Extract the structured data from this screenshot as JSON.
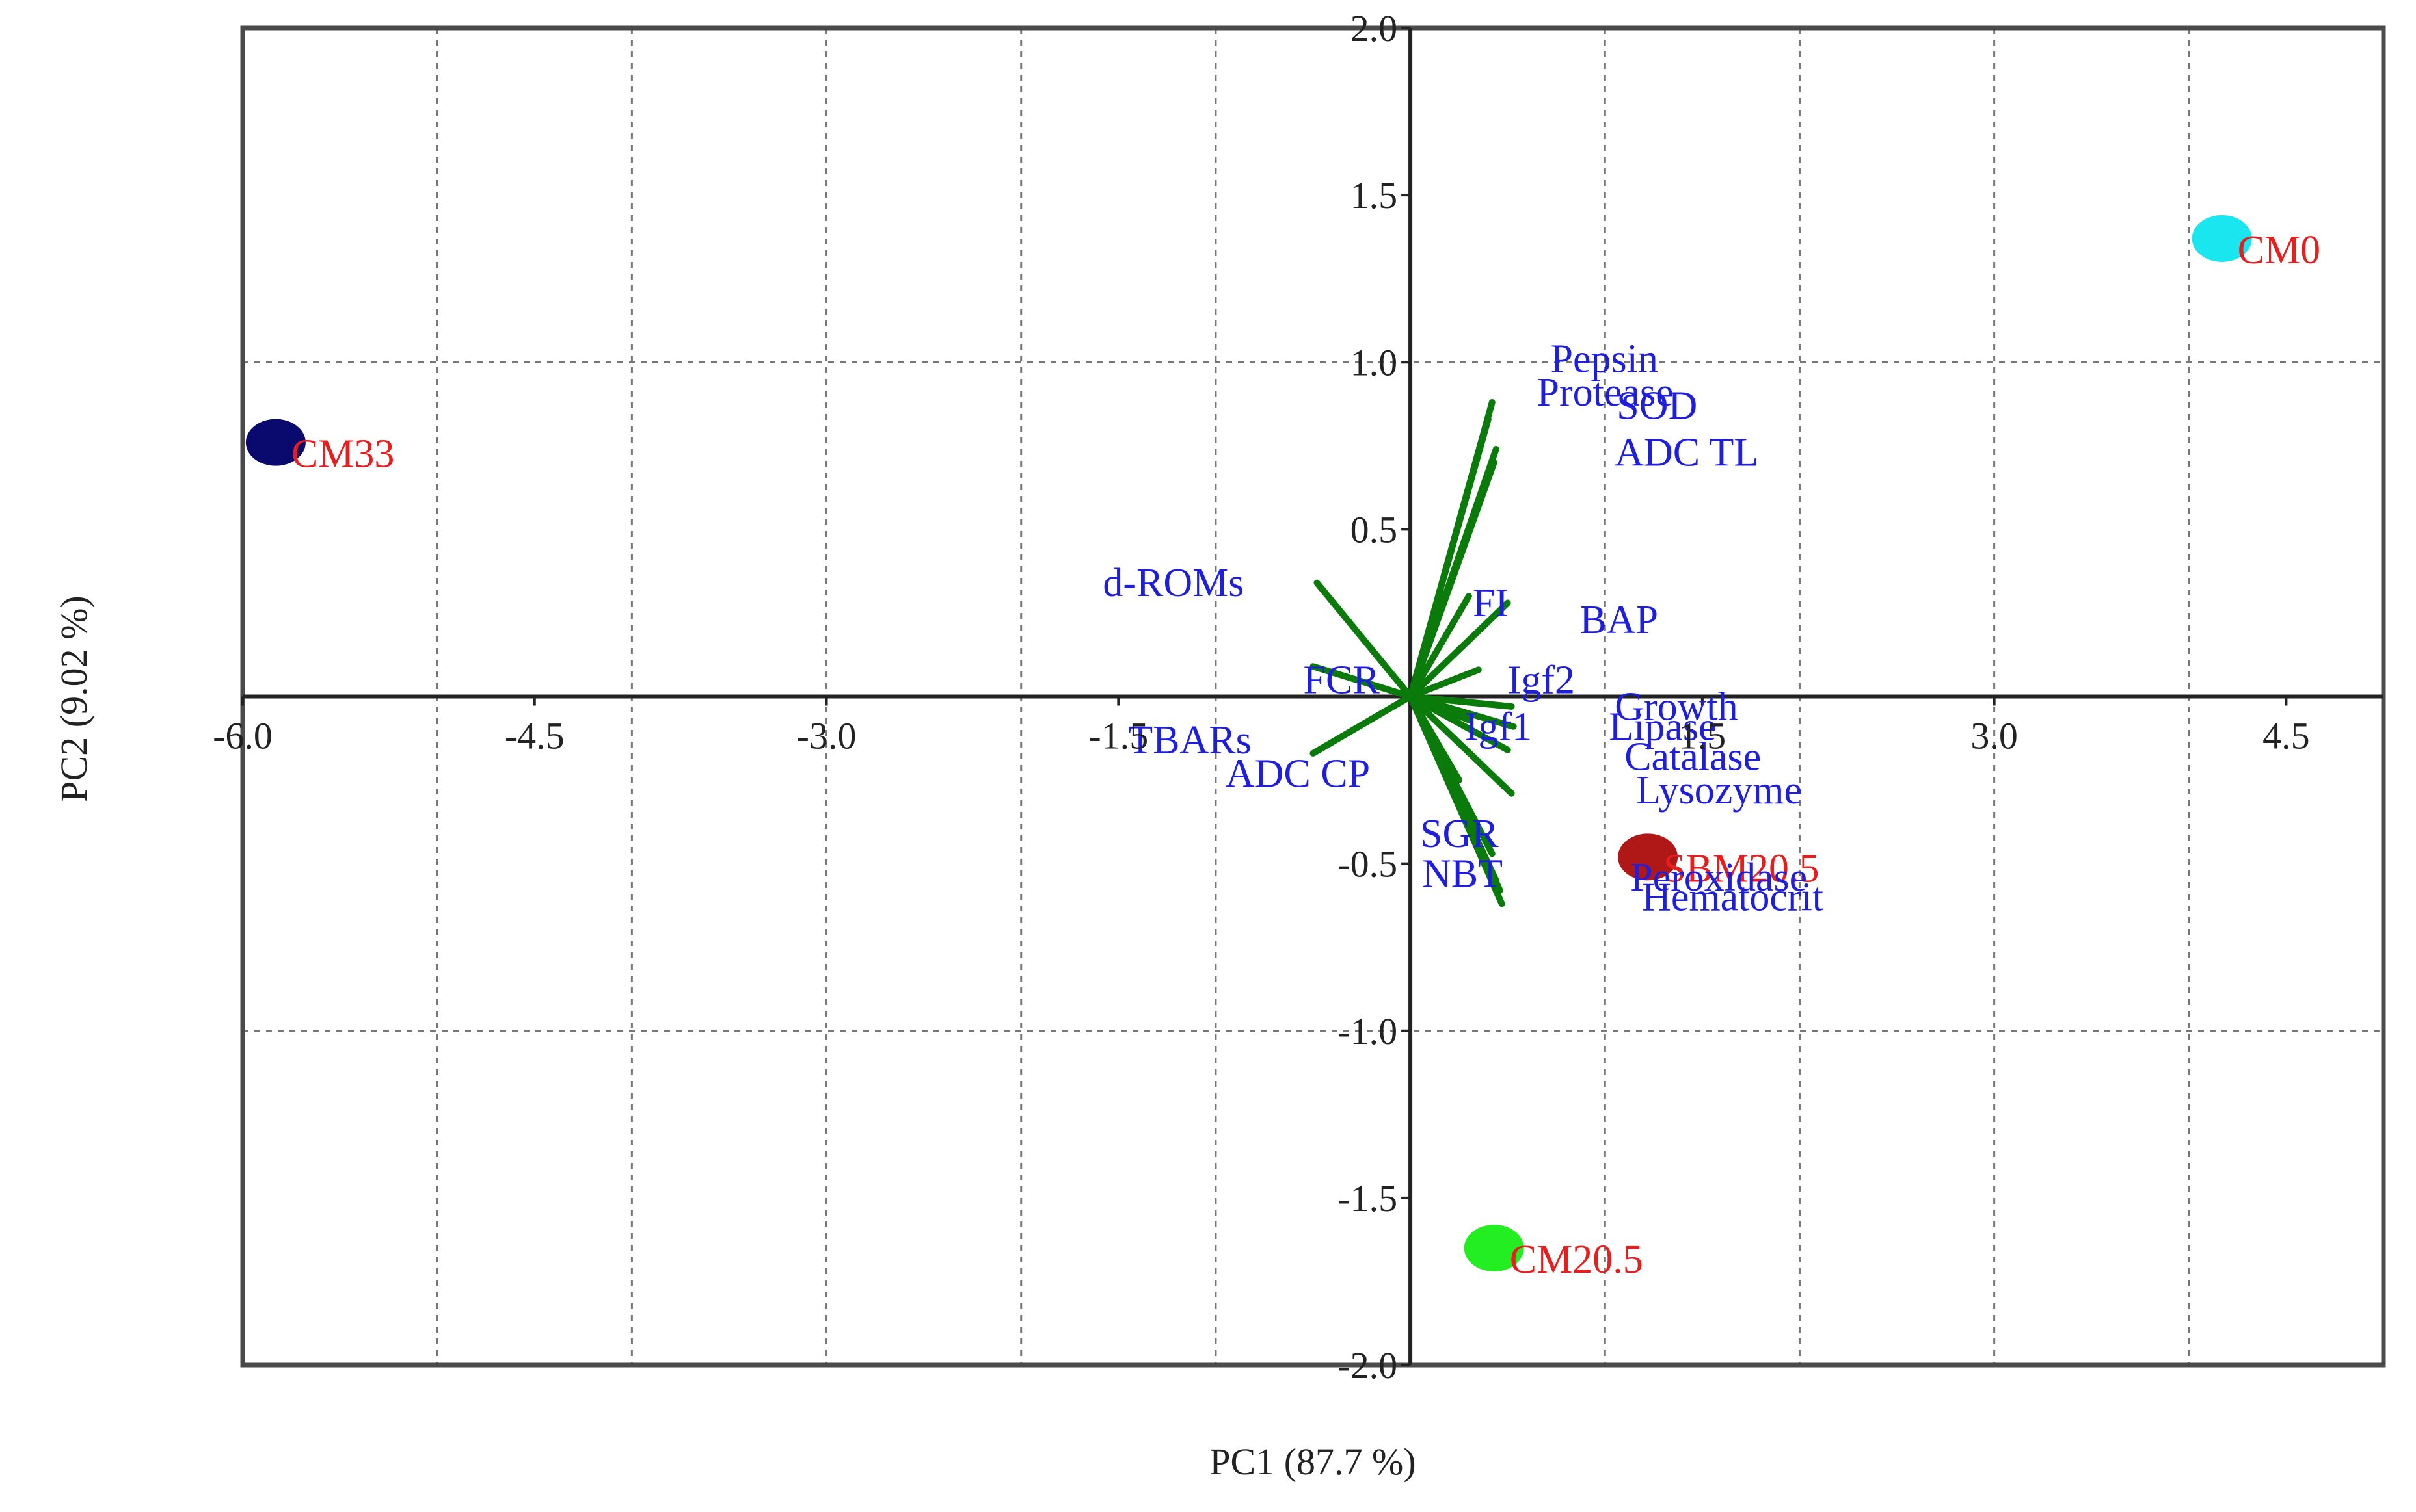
{
  "chart_data": {
    "type": "scatter",
    "subtype": "pca-biplot",
    "xlabel": "PC1 (87.7 %)",
    "ylabel": "PC2 (9.02 %)",
    "xlim": [
      -6.0,
      5.0
    ],
    "ylim": [
      -2.0,
      2.0
    ],
    "x_ticks": [
      -6.0,
      -4.5,
      -3.0,
      -1.5,
      1.5,
      3.0,
      4.5
    ],
    "x_tick_labels": [
      "-6.0",
      "-4.5",
      "-3.0",
      "-1.5",
      "1.5",
      "3.0",
      "4.5"
    ],
    "y_ticks": [
      2.0,
      1.5,
      1.0,
      0.5,
      -0.5,
      -1.0,
      -1.5,
      -2.0
    ],
    "y_tick_labels": [
      "2.0",
      "1.5",
      "1.0",
      "0.5",
      "-0.5",
      "-1.0",
      "-1.5",
      "-2.0"
    ],
    "grid_x": [
      -5.0,
      -4.0,
      -3.0,
      -2.0,
      -1.0,
      1.0,
      2.0,
      3.0,
      4.0
    ],
    "grid_y": [
      1.0,
      -1.0
    ],
    "grid": true,
    "groups": [
      {
        "name": "CM0",
        "x": 4.17,
        "y": 1.37,
        "color": "#19e6ef"
      },
      {
        "name": "CM33",
        "x": -5.83,
        "y": 0.76,
        "color": "#0a0a6e"
      },
      {
        "name": "SBM20.5",
        "x": 1.22,
        "y": -0.48,
        "color": "#b01818"
      },
      {
        "name": "CM20.5",
        "x": 0.43,
        "y": -1.65,
        "color": "#22ee22"
      }
    ],
    "loadings": [
      {
        "name": "Pepsin",
        "x": 0.42,
        "y": 0.88
      },
      {
        "name": "Protease",
        "x": 0.4,
        "y": 0.83
      },
      {
        "name": "SOD",
        "x": 0.44,
        "y": 0.74
      },
      {
        "name": "ADC TL",
        "x": 0.43,
        "y": 0.7
      },
      {
        "name": "d-ROMs",
        "x": -0.48,
        "y": 0.34
      },
      {
        "name": "FI",
        "x": 0.3,
        "y": 0.3
      },
      {
        "name": "BAP",
        "x": 0.5,
        "y": 0.28
      },
      {
        "name": "FCR",
        "x": -0.5,
        "y": 0.09
      },
      {
        "name": "Igf2",
        "x": 0.35,
        "y": 0.08
      },
      {
        "name": "Growth",
        "x": 0.52,
        "y": -0.03
      },
      {
        "name": "Igf1",
        "x": 0.3,
        "y": -0.07
      },
      {
        "name": "Lipase",
        "x": 0.53,
        "y": -0.09
      },
      {
        "name": "Catalase",
        "x": 0.5,
        "y": -0.16
      },
      {
        "name": "TBARs",
        "x": -0.5,
        "y": -0.17
      },
      {
        "name": "ADC CP",
        "x": 0.25,
        "y": -0.25
      },
      {
        "name": "Lysozyme",
        "x": 0.52,
        "y": -0.29
      },
      {
        "name": "SGR",
        "x": 0.42,
        "y": -0.47
      },
      {
        "name": "NBT",
        "x": 0.44,
        "y": -0.55
      },
      {
        "name": "Peroxidase",
        "x": 0.46,
        "y": -0.58
      },
      {
        "name": "Hematocrit",
        "x": 0.47,
        "y": -0.62
      }
    ],
    "var_labels": [
      {
        "text": "Pepsin",
        "x": 0.72,
        "y": 0.97
      },
      {
        "text": "Protease",
        "x": 0.65,
        "y": 0.87
      },
      {
        "text": "SOD",
        "x": 1.06,
        "y": 0.83
      },
      {
        "text": "ADC TL",
        "x": 1.05,
        "y": 0.69
      },
      {
        "text": "d-ROMs",
        "x": -1.58,
        "y": 0.3
      },
      {
        "text": "FI",
        "x": 0.32,
        "y": 0.24
      },
      {
        "text": "BAP",
        "x": 0.87,
        "y": 0.19
      },
      {
        "text": "FCR",
        "x": -0.55,
        "y": 0.01
      },
      {
        "text": "Igf2",
        "x": 0.5,
        "y": 0.01
      },
      {
        "text": "Growth",
        "x": 1.05,
        "y": -0.07
      },
      {
        "text": "Igf1",
        "x": 0.28,
        "y": -0.13
      },
      {
        "text": "Lipase",
        "x": 1.02,
        "y": -0.13
      },
      {
        "text": "Catalase",
        "x": 1.1,
        "y": -0.22
      },
      {
        "text": "TBARs",
        "x": -1.45,
        "y": -0.17
      },
      {
        "text": "ADC CP",
        "x": -0.95,
        "y": -0.27
      },
      {
        "text": "Lysozyme",
        "x": 1.16,
        "y": -0.32
      },
      {
        "text": "SGR",
        "x": 0.05,
        "y": -0.45
      },
      {
        "text": "NBT",
        "x": 0.06,
        "y": -0.57
      },
      {
        "text": "Peroxidase",
        "x": 1.13,
        "y": -0.58
      },
      {
        "text": "Hematocrit",
        "x": 1.19,
        "y": -0.64
      }
    ]
  }
}
